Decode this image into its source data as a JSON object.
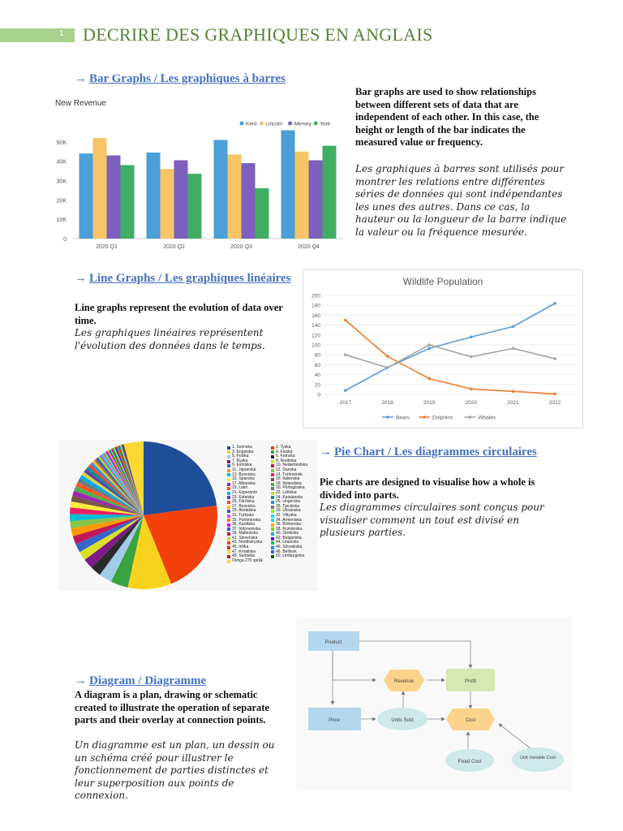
{
  "header": {
    "page_number": "1",
    "title": "DECRIRE DES GRAPHIQUES EN ANGLAIS"
  },
  "arrow": "→",
  "bar_section": {
    "heading": "Bar Graphs  / Les graphiques à barres",
    "en": "Bar graphs are used to show relationships between different sets of data that are independent of each other. In this case, the height or length of the bar indicates the measured value or frequency.",
    "fr": "Les graphiques à barres sont utilisés pour montrer les relations entre différentes séries de données qui sont indépendantes les unes des autres. Dans ce cas, la hauteur ou la longueur de la barre indique la valeur ou la fréquence mesurée."
  },
  "line_section": {
    "heading": "Line Graphs / Les graphiques linéaires",
    "en": "Line graphs represent the evolution of data over time.",
    "fr": "Les graphiques linéaires représentent l'évolution des données dans le temps."
  },
  "pie_section": {
    "heading": "Pie Chart / Les diagrammes circulaires",
    "en": "Pie charts are designed to visualise how a whole is divided into parts.",
    "fr": "Les diagrammes circulaires sont conçus pour visualiser comment un tout est divisé en plusieurs parties."
  },
  "diagram_section": {
    "heading": "Diagram / Diagramme",
    "en": "A diagram is a plan, drawing or schematic created to illustrate the operation of separate parts and their overlay at connection points.",
    "fr": "Un diagramme est un plan, un dessin ou un schéma créé pour illustrer le fonctionnement de parties distinctes et leur superposition aux points de connexion."
  },
  "chart_data": [
    {
      "type": "bar",
      "title": "New Revenue",
      "categories": [
        "2020 Q1",
        "2020 Q2",
        "2020 Q3",
        "2020 Q4"
      ],
      "series": [
        {
          "name": "Kent",
          "color": "#4c9fd8",
          "values": [
            44000,
            44500,
            51000,
            56000
          ]
        },
        {
          "name": "Lincoln",
          "color": "#f7c566",
          "values": [
            52000,
            36000,
            43500,
            45000
          ]
        },
        {
          "name": "Mersey",
          "color": "#7d5fbd",
          "values": [
            43000,
            40500,
            39000,
            40500
          ]
        },
        {
          "name": "York",
          "color": "#3fae64",
          "values": [
            38000,
            33500,
            26000,
            48000
          ]
        }
      ],
      "yticks": [
        "0",
        "10K",
        "20K",
        "30K",
        "40K",
        "50K"
      ],
      "ylim": [
        0,
        60000
      ],
      "legend": "top-right",
      "grid": false
    },
    {
      "type": "line",
      "title": "Wildlife Population",
      "x": [
        "2017",
        "2018",
        "2019",
        "2020",
        "2021",
        "2022"
      ],
      "series": [
        {
          "name": "Bears",
          "color": "#5b9bd5",
          "values": [
            8,
            54,
            93,
            116,
            137,
            184
          ]
        },
        {
          "name": "Dolphins",
          "color": "#ed7d31",
          "values": [
            150,
            77,
            32,
            11,
            6,
            1
          ]
        },
        {
          "name": "Whales",
          "color": "#a5a5a5",
          "values": [
            80,
            54,
            100,
            76,
            93,
            72
          ]
        }
      ],
      "yticks": [
        "0",
        "20",
        "40",
        "60",
        "80",
        "100",
        "120",
        "140",
        "160",
        "180",
        "200"
      ],
      "ylim": [
        0,
        200
      ],
      "legend": "bottom",
      "grid": true
    },
    {
      "type": "pie",
      "values": [
        24,
        22,
        10,
        4,
        3,
        2.5,
        2.3,
        2.1,
        2,
        1.9,
        1.8,
        1.7,
        1.6,
        1.5,
        1.4,
        1.3,
        1.2,
        1.1,
        1.0,
        0.95,
        0.9,
        0.85,
        0.8,
        0.75,
        0.7,
        0.65,
        0.6,
        0.55,
        0.5,
        0.48,
        0.46,
        0.44,
        0.42,
        0.4,
        0.38,
        0.36,
        0.34,
        0.32,
        0.3,
        0.3,
        0.28,
        0.28,
        0.26,
        0.26,
        0.24,
        0.24,
        0.22,
        0.22,
        0.2,
        0.2,
        4.56
      ],
      "labels": [
        "1. Svenska",
        "2. Tyska",
        "3. Engelska",
        "4. Finska",
        "5. Polska",
        "6. Franska",
        "7. Ryska",
        "8. Nordiska",
        "9. Estniska",
        "10. Nederländska",
        "11. Japanska",
        "12. Danska",
        "13. Bosniska",
        "14. Turkmensk",
        "15. Spanska",
        "16. Italienska",
        "17. Albanska",
        "18. Nylandska",
        "19. Latin",
        "20. Portugisiska",
        "21. Esperanto",
        "22. Lettiska",
        "23. Estniska",
        "24. Katalanska",
        "25. Färöiska",
        "26. Ungerska",
        "27. Bosniska",
        "28. Tjeckiska",
        "29. Alvdalska",
        "30. Ukrainska",
        "31. Turkiska",
        "32. Viltyska",
        "33. Pommerska",
        "34. Armeniska",
        "35. Kurdiska",
        "36. Bretonska",
        "37. Indonesiska",
        "38. Rumänska",
        "39. Maltesiska",
        "40. Grekiska",
        "41. Slovenska",
        "42. Bulgariska",
        "43. Nordiskryska",
        "44. Litauiska",
        "45. Irlska",
        "46. Slovakiska",
        "47. Kroatiska",
        "48. Bellinsk",
        "49. Serbiska",
        "50. Limburgiska",
        "Övriga 270 språk"
      ],
      "colors": [
        "#1f4e99",
        "#f2410a",
        "#f7d31e",
        "#3aa340",
        "#a1cbe8",
        "#2b2b2b",
        "#7e1a8a",
        "#d9e021",
        "#3366cc",
        "#c2185b",
        "#ff9800",
        "#8bc34a",
        "#00bcd4",
        "#e91e63",
        "#ffeb3b",
        "#795548",
        "#9c27b0",
        "#4caf50",
        "#ff5722",
        "#607d8b",
        "#03a9f4",
        "#cddc39",
        "#673ab7",
        "#009688",
        "#f44336",
        "#2196f3",
        "#ffc107",
        "#8d6e63",
        "#3f51b5",
        "#76ff03",
        "#e040fb",
        "#00e5ff",
        "#ff6e40",
        "#1de9b6",
        "#d500f9",
        "#ffab00",
        "#304ffe",
        "#64dd17",
        "#c51162",
        "#00b8d4",
        "#aeea00",
        "#6200ea",
        "#ff3d00",
        "#00c853",
        "#dd2c00",
        "#0091ea",
        "#ffd600",
        "#2962ff",
        "#b71c1c",
        "#1b5e20",
        "#fdd835"
      ]
    }
  ],
  "diagram": {
    "nodes": {
      "product": "Product",
      "revenue": "Revenue",
      "profit": "Profit",
      "price": "Price",
      "units_sold": "Units Sold",
      "cost": "Cost",
      "fixed_cost": "Fixed Cost",
      "unit_variable_cost": "Unit Variable Cost"
    }
  }
}
